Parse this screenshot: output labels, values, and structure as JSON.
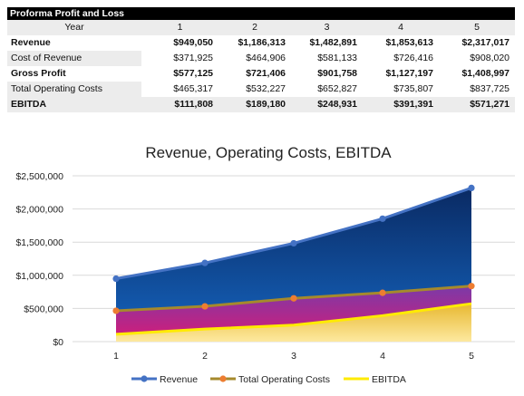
{
  "table": {
    "title": "Proforma Profit and Loss",
    "header_label": "Year",
    "years": [
      "1",
      "2",
      "3",
      "4",
      "5"
    ],
    "rows": [
      {
        "label": "Revenue",
        "bold": true,
        "values": [
          "$949,050",
          "$1,186,313",
          "$1,482,891",
          "$1,853,613",
          "$2,317,017"
        ]
      },
      {
        "label": "Cost of Revenue",
        "bold": false,
        "values": [
          "$371,925",
          "$464,906",
          "$581,133",
          "$726,416",
          "$908,020"
        ]
      },
      {
        "label": "Gross Profit",
        "bold": true,
        "values": [
          "$577,125",
          "$721,406",
          "$901,758",
          "$1,127,197",
          "$1,408,997"
        ]
      },
      {
        "label": "Total Operating Costs",
        "bold": false,
        "values": [
          "$465,317",
          "$532,227",
          "$652,827",
          "$735,807",
          "$837,725"
        ]
      },
      {
        "label": "EBITDA",
        "bold": true,
        "values": [
          "$111,808",
          "$189,180",
          "$248,931",
          "$391,391",
          "$571,271"
        ]
      }
    ]
  },
  "chart_data": {
    "type": "area",
    "title": "Revenue, Operating Costs, EBITDA",
    "x": [
      1,
      2,
      3,
      4,
      5
    ],
    "x_tick_labels": [
      "1",
      "2",
      "3",
      "4",
      "5"
    ],
    "ylim": [
      0,
      2500000
    ],
    "y_tick_labels": [
      "$0",
      "$500,000",
      "$1,000,000",
      "$1,500,000",
      "$2,000,000",
      "$2,500,000"
    ],
    "grid": true,
    "legend_position": "bottom",
    "series": [
      {
        "name": "Revenue",
        "values": [
          949050,
          1186313,
          1482891,
          1853613,
          2317017
        ],
        "line_color": "#4472c4",
        "fill_top": "#0a2a63",
        "fill_bottom": "#1565c0"
      },
      {
        "name": "Total Operating Costs",
        "values": [
          465317,
          532227,
          652827,
          735807,
          837725
        ],
        "line_color": "#a58a2c",
        "marker_color": "#ed7d31",
        "fill_top": "#7b3aa8",
        "fill_bottom": "#d81b76"
      },
      {
        "name": "EBITDA",
        "values": [
          111808,
          189180,
          248931,
          391391,
          571271
        ],
        "line_color": "#ffeb00",
        "fill_top": "#e8b830",
        "fill_bottom": "#fde9a0"
      }
    ]
  }
}
